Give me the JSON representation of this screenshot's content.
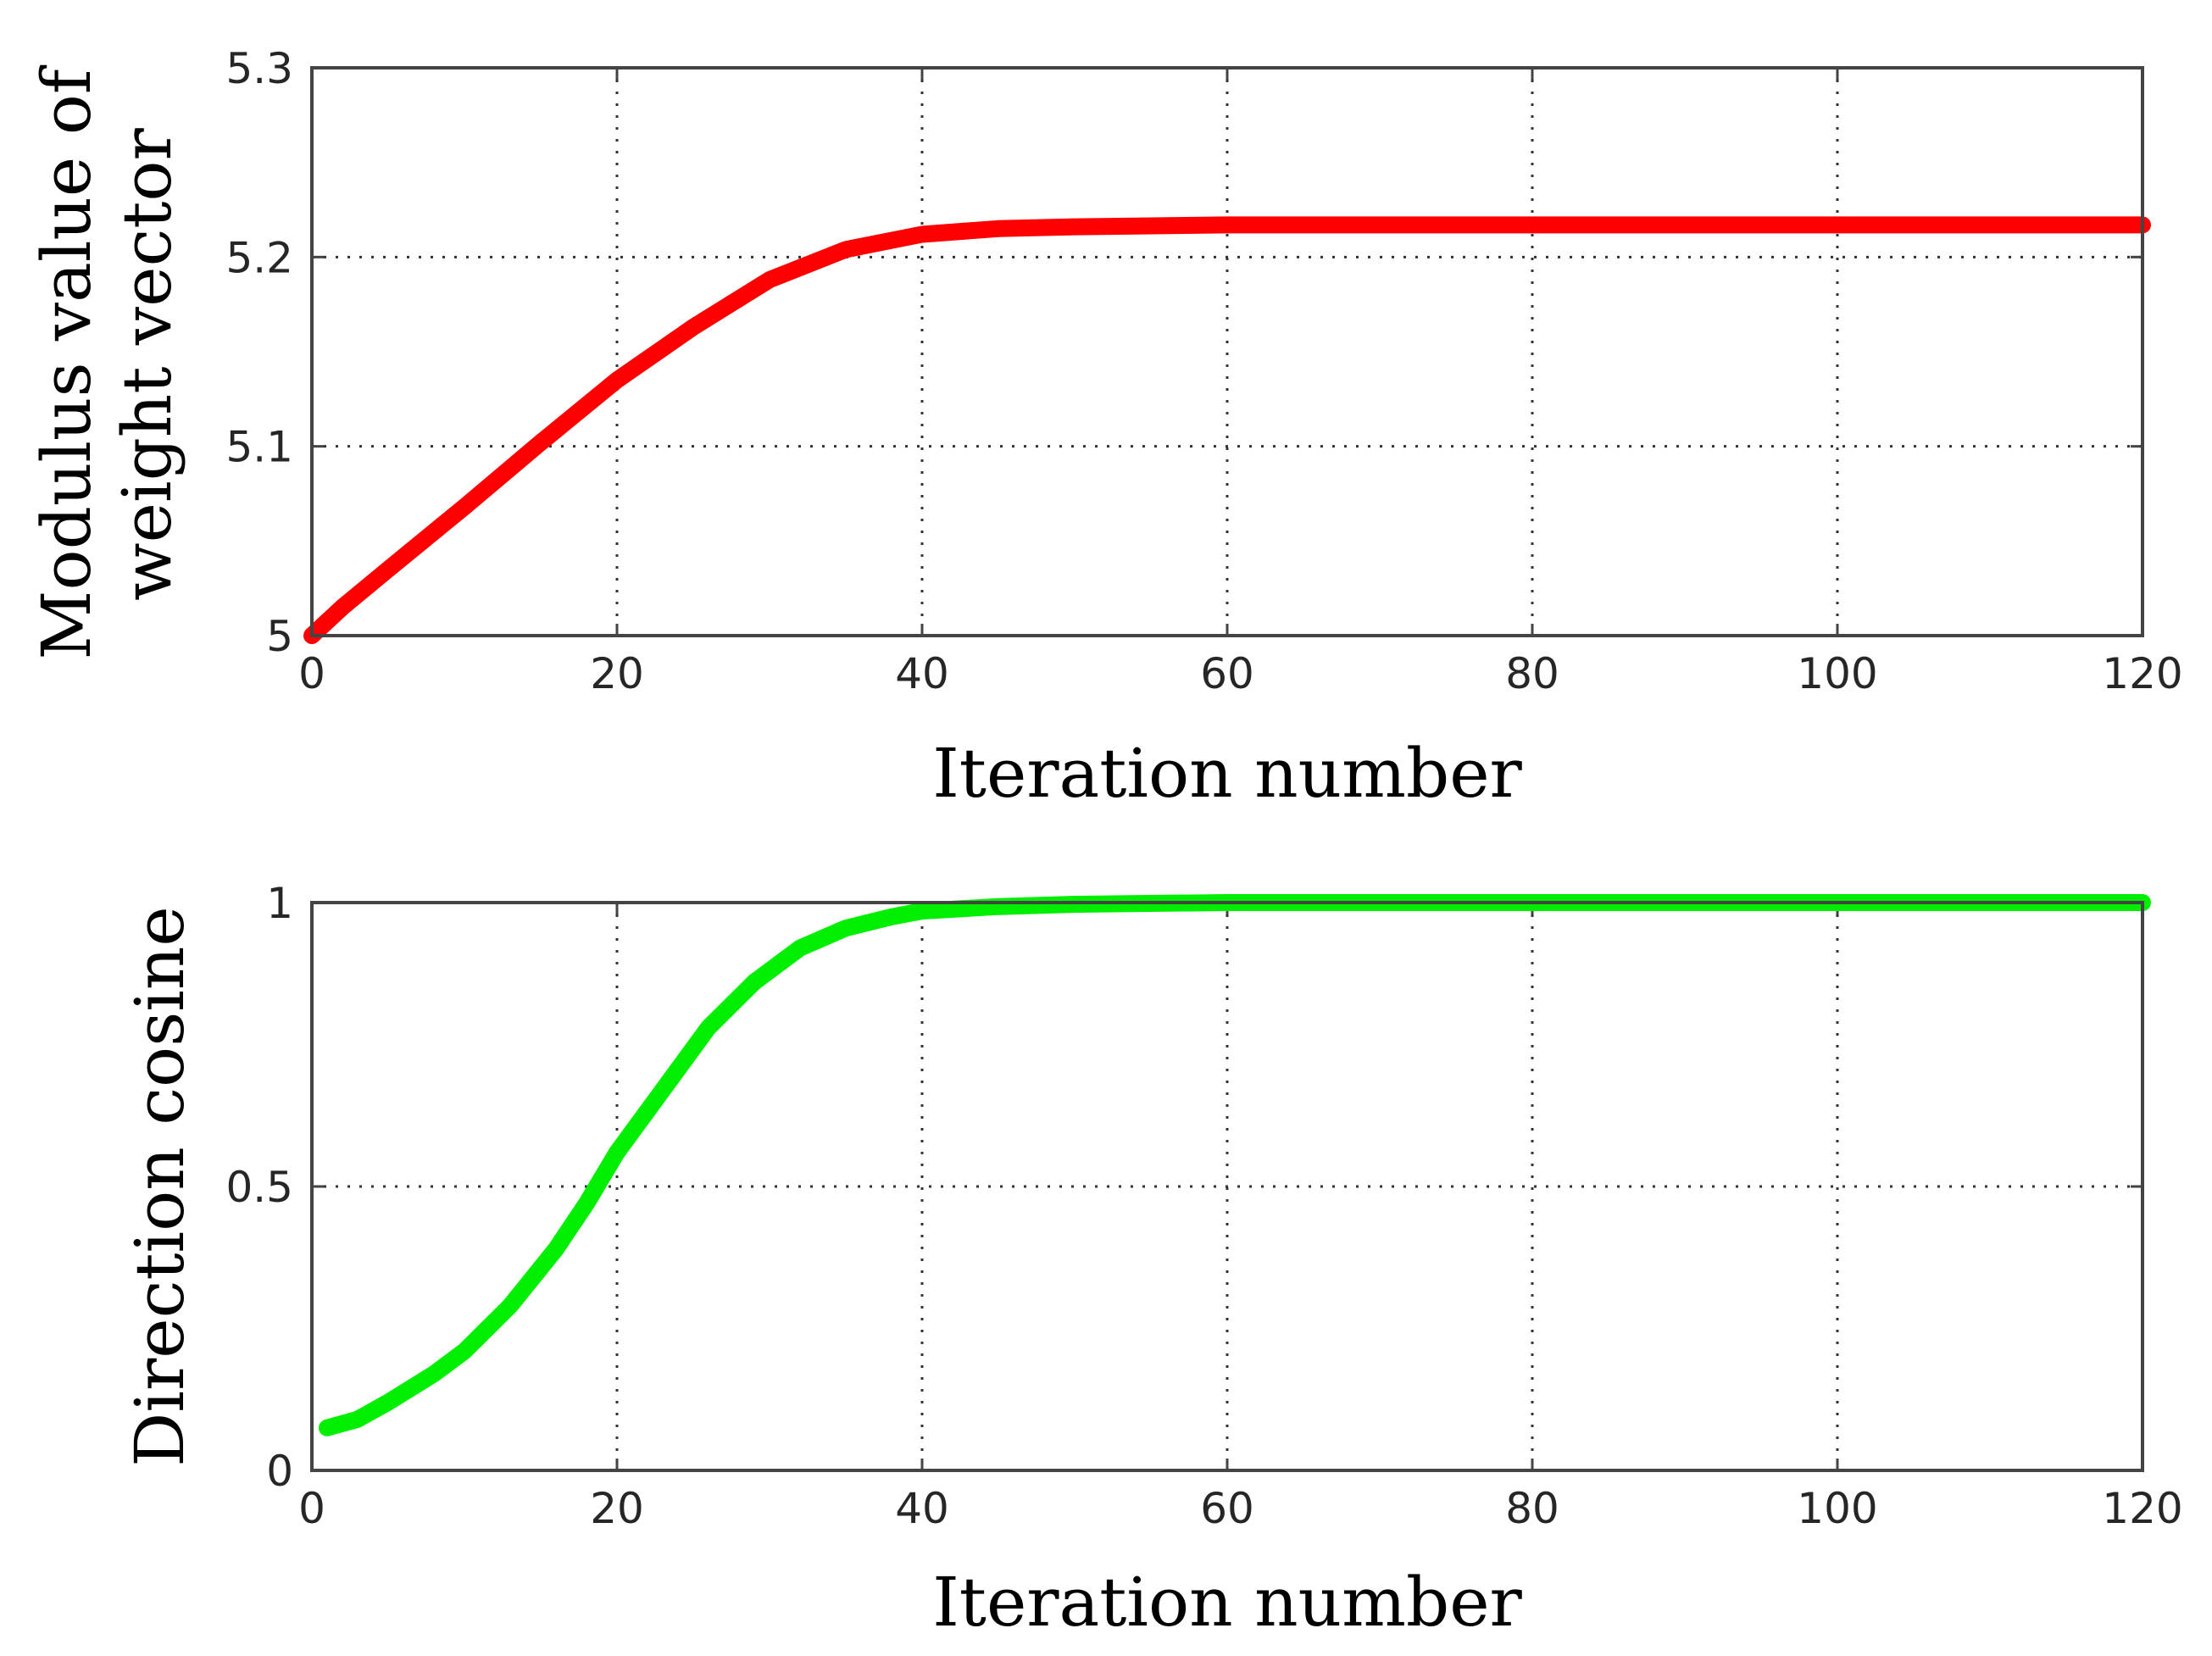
{
  "chart_data": [
    {
      "type": "line",
      "title": "",
      "xlabel": "Iteration number",
      "ylabel_lines": [
        "Modulus value of",
        "weight vector"
      ],
      "xlim": [
        0,
        120
      ],
      "ylim": [
        5,
        5.3
      ],
      "xticks": [
        0,
        20,
        40,
        60,
        80,
        100,
        120
      ],
      "yticks": [
        5,
        5.1,
        5.2,
        5.3
      ],
      "xtick_labels": [
        "0",
        "20",
        "40",
        "60",
        "80",
        100,
        "120"
      ],
      "ytick_labels": [
        "5",
        "5.1",
        "5.2",
        "5.3"
      ],
      "grid": true,
      "series": [
        {
          "color": "#ff0000",
          "x": [
            0,
            2,
            5,
            10,
            15,
            20,
            25,
            30,
            35,
            40,
            45,
            50,
            60,
            80,
            100,
            120
          ],
          "y": [
            5.0,
            5.015,
            5.035,
            5.068,
            5.102,
            5.135,
            5.163,
            5.188,
            5.204,
            5.212,
            5.215,
            5.216,
            5.217,
            5.217,
            5.217,
            5.217
          ]
        }
      ]
    },
    {
      "type": "line",
      "title": "",
      "xlabel": "Iteration number",
      "ylabel_lines": [
        "Direction cosine"
      ],
      "xlim": [
        0,
        120
      ],
      "ylim": [
        0,
        1
      ],
      "xticks": [
        0,
        20,
        40,
        60,
        80,
        100,
        120
      ],
      "yticks": [
        0,
        0.5,
        1
      ],
      "xtick_labels": [
        "0",
        "20",
        "40",
        "60",
        "80",
        "100",
        "120"
      ],
      "ytick_labels": [
        "0",
        "0.5",
        "1"
      ],
      "grid": true,
      "series": [
        {
          "color": "#00ee00",
          "x": [
            1,
            3,
            5,
            8,
            10,
            13,
            16,
            18,
            20,
            23,
            26,
            29,
            32,
            35,
            38,
            40,
            45,
            50,
            60,
            80,
            100,
            120
          ],
          "y": [
            0.075,
            0.09,
            0.12,
            0.17,
            0.21,
            0.29,
            0.39,
            0.47,
            0.56,
            0.67,
            0.78,
            0.86,
            0.92,
            0.955,
            0.975,
            0.985,
            0.993,
            0.997,
            1.0,
            1.0,
            1.0,
            1.0
          ]
        }
      ]
    }
  ]
}
